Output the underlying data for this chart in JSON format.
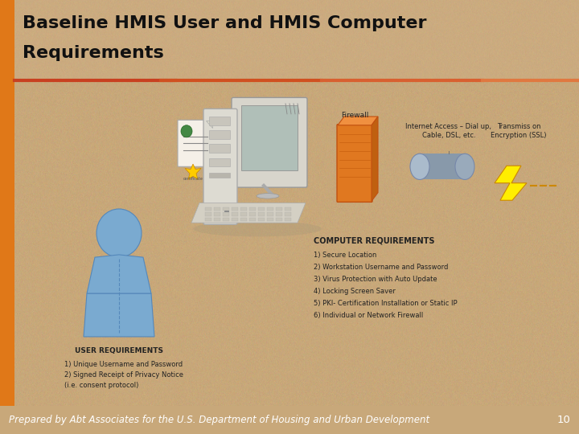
{
  "title_line1": "Baseline HMIS User and HMIS Computer",
  "title_line2": "Requirements",
  "title_color": "#111111",
  "title_fontsize": 16,
  "bg_color": "#c8a87a",
  "left_bar_color": "#e07818",
  "header_line_color": "#b84010",
  "footer_bg_color": "#5a4070",
  "footer_text": "Prepared by Abt Associates for the U.S. Department of Housing and Urban Development",
  "footer_number": "10",
  "footer_text_color": "#ffffff",
  "footer_fontsize": 8.5,
  "computer_req_title": "COMPUTER REQUIREMENTS",
  "computer_req_items": [
    "1) Secure Location",
    "2) Workstation Username and Password",
    "3) Virus Protection with Auto Update",
    "4) Locking Screen Saver",
    "5) PKI- Certification Installation or Static IP",
    "6) Individual or Network Firewall"
  ],
  "user_req_title": "USER REQUIREMENTS",
  "user_req_items": [
    "1) Unique Username and Password",
    "2) Signed Receipt of Privacy Notice",
    "(i.e. consent protocol)"
  ],
  "firewall_label": "Firewall",
  "internet_label": "Internet Access – Dial up,\nCable, DSL, etc.",
  "transmit_label": "Transmiss on\nEncryption (SSL)"
}
